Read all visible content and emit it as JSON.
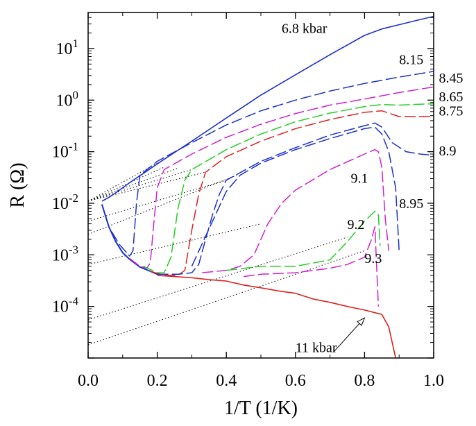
{
  "chart_data": {
    "type": "line",
    "xlabel": "1/T (1/K)",
    "ylabel": "R (Ω)",
    "xlim": [
      0.0,
      1.0
    ],
    "ylim": [
      1e-05,
      50
    ],
    "yscale": "log",
    "grid": false,
    "legend": "none",
    "x_ticks": [
      0.0,
      0.2,
      0.4,
      0.6,
      0.8,
      1.0
    ],
    "x_tick_labels": [
      "0.0",
      "0.2",
      "0.4",
      "0.6",
      "0.8",
      "1.0"
    ],
    "y_ticks": [
      {
        "value": 10,
        "base": "10",
        "exp": "1"
      },
      {
        "value": 1,
        "base": "10",
        "exp": "0"
      },
      {
        "value": 0.1,
        "base": "10",
        "exp": "-1"
      },
      {
        "value": 0.01,
        "base": "10",
        "exp": "-2"
      },
      {
        "value": 0.001,
        "base": "10",
        "exp": "-3"
      },
      {
        "value": 0.0001,
        "base": "10",
        "exp": "-4"
      }
    ],
    "series": [
      {
        "label": "6.8 kbar",
        "color": "#1a2fd0",
        "dash": "solid",
        "x": [
          0.04,
          0.06,
          0.08,
          0.1,
          0.12,
          0.14,
          0.16,
          0.2,
          0.3,
          0.4,
          0.5,
          0.6,
          0.7,
          0.8,
          0.85,
          0.9,
          0.95,
          1.0
        ],
        "y": [
          0.011,
          0.013,
          0.016,
          0.02,
          0.025,
          0.031,
          0.038,
          0.058,
          0.16,
          0.45,
          1.25,
          3.1,
          7.6,
          18,
          24,
          29,
          35,
          42
        ]
      },
      {
        "label": "8.15",
        "color": "#1a2fd0",
        "dash": "dashed",
        "x": [
          0.04,
          0.06,
          0.09,
          0.12,
          0.13,
          0.14,
          0.15,
          0.2,
          0.3,
          0.4,
          0.5,
          0.6,
          0.7,
          0.8,
          0.9,
          1.0
        ],
        "y": [
          0.0095,
          0.0035,
          0.0016,
          0.00095,
          0.0012,
          0.01,
          0.035,
          0.065,
          0.15,
          0.33,
          0.62,
          1.0,
          1.5,
          2.1,
          2.8,
          3.6
        ]
      },
      {
        "label": "8.45",
        "color": "#d020d0",
        "dash": "dashed",
        "x": [
          0.12,
          0.15,
          0.17,
          0.18,
          0.19,
          0.2,
          0.22,
          0.3,
          0.4,
          0.5,
          0.6,
          0.7,
          0.8,
          0.9,
          1.0
        ],
        "y": [
          0.00085,
          0.0006,
          0.00055,
          0.0007,
          0.004,
          0.02,
          0.045,
          0.09,
          0.19,
          0.34,
          0.55,
          0.8,
          1.05,
          1.4,
          1.8
        ]
      },
      {
        "label": "8.65",
        "color": "#20d020",
        "dash": "dashed",
        "x": [
          0.16,
          0.2,
          0.22,
          0.24,
          0.26,
          0.28,
          0.3,
          0.4,
          0.5,
          0.6,
          0.7,
          0.8,
          0.85,
          0.9,
          1.0
        ],
        "y": [
          0.0006,
          0.00045,
          0.00045,
          0.0009,
          0.008,
          0.028,
          0.045,
          0.11,
          0.22,
          0.38,
          0.56,
          0.75,
          0.82,
          0.8,
          0.85
        ]
      },
      {
        "label": "8.75",
        "color": "#e02020",
        "dash": "dashed",
        "x": [
          0.18,
          0.22,
          0.26,
          0.28,
          0.3,
          0.32,
          0.34,
          0.4,
          0.5,
          0.6,
          0.7,
          0.8,
          0.85,
          0.9,
          1.0
        ],
        "y": [
          0.00048,
          0.0004,
          0.0004,
          0.0005,
          0.003,
          0.015,
          0.04,
          0.08,
          0.16,
          0.28,
          0.42,
          0.58,
          0.62,
          0.48,
          0.48
        ]
      },
      {
        "label": "8.9",
        "color": "#1a2fd0",
        "dash": "dashed",
        "x": [
          0.2,
          0.26,
          0.3,
          0.32,
          0.34,
          0.36,
          0.38,
          0.4,
          0.5,
          0.6,
          0.7,
          0.8,
          0.83,
          0.85,
          0.88,
          0.92,
          0.96,
          1.0
        ],
        "y": [
          0.00042,
          0.00042,
          0.00045,
          0.00065,
          0.002,
          0.006,
          0.015,
          0.028,
          0.065,
          0.12,
          0.21,
          0.32,
          0.36,
          0.3,
          0.15,
          0.1,
          0.09,
          0.085
        ]
      },
      {
        "label": "8.95",
        "color": "#1a2fd0",
        "dash": "dashed",
        "x": [
          0.3,
          0.36,
          0.4,
          0.44,
          0.5,
          0.6,
          0.7,
          0.8,
          0.83,
          0.85,
          0.87,
          0.89,
          0.9
        ],
        "y": [
          0.0006,
          0.0045,
          0.017,
          0.035,
          0.06,
          0.11,
          0.18,
          0.28,
          0.3,
          0.22,
          0.1,
          0.02,
          0.0012
        ]
      },
      {
        "label": "9.1",
        "color": "#d020d0",
        "dash": "dashed",
        "x": [
          0.33,
          0.4,
          0.44,
          0.48,
          0.52,
          0.56,
          0.6,
          0.7,
          0.8,
          0.83,
          0.84,
          0.85,
          0.86,
          0.87
        ],
        "y": [
          0.00045,
          0.0005,
          0.0006,
          0.001,
          0.004,
          0.01,
          0.018,
          0.045,
          0.09,
          0.11,
          0.1,
          0.05,
          0.005,
          0.0012
        ]
      },
      {
        "label": "9.2",
        "color": "#20d020",
        "dash": "dashed",
        "x": [
          0.4,
          0.5,
          0.6,
          0.7,
          0.75,
          0.8,
          0.83,
          0.84,
          0.845
        ],
        "y": [
          0.0005,
          0.0006,
          0.0006,
          0.0008,
          0.0018,
          0.0045,
          0.007,
          0.006,
          0.0015
        ]
      },
      {
        "label": "9.3",
        "color": "#d020d0",
        "dash": "dashed",
        "x": [
          0.45,
          0.5,
          0.6,
          0.7,
          0.75,
          0.8,
          0.82,
          0.83,
          0.84
        ],
        "y": [
          0.00038,
          0.00042,
          0.00045,
          0.00055,
          0.00065,
          0.0009,
          0.002,
          0.0035,
          0.0001
        ]
      },
      {
        "label": "11 kbar",
        "color": "#e02020",
        "dash": "solid",
        "x": [
          0.2,
          0.25,
          0.3,
          0.35,
          0.4,
          0.45,
          0.5,
          0.55,
          0.6,
          0.65,
          0.7,
          0.75,
          0.8,
          0.85,
          0.87,
          0.88,
          0.9
        ],
        "y": [
          0.0004,
          0.00038,
          0.00036,
          0.00033,
          0.00031,
          0.00026,
          0.00023,
          0.0002,
          0.00018,
          0.00014,
          0.00012,
          0.0001,
          8.5e-05,
          7e-05,
          4e-05,
          2e-05,
          5e-06
        ]
      }
    ],
    "shared_low_temperature_segment": {
      "x": [
        0.04,
        0.06,
        0.08,
        0.1,
        0.12,
        0.15,
        0.18,
        0.2
      ],
      "y": [
        0.0095,
        0.0035,
        0.0018,
        0.0011,
        0.00082,
        0.00058,
        0.00048,
        0.00042
      ]
    },
    "extrapolation_lines": {
      "color": "#000000",
      "dash": "dotted",
      "segments": [
        {
          "x": [
            0.0,
            0.2
          ],
          "y": [
            0.011,
            0.06
          ]
        },
        {
          "x": [
            0.0,
            0.22
          ],
          "y": [
            0.011,
            0.05
          ]
        },
        {
          "x": [
            0.0,
            0.26
          ],
          "y": [
            0.011,
            0.048
          ]
        },
        {
          "x": [
            0.0,
            0.3
          ],
          "y": [
            0.011,
            0.045
          ]
        },
        {
          "x": [
            0.0,
            0.34
          ],
          "y": [
            0.011,
            0.04
          ]
        },
        {
          "x": [
            0.0,
            0.4
          ],
          "y": [
            0.0045,
            0.028
          ]
        },
        {
          "x": [
            0.0,
            0.43
          ],
          "y": [
            0.0025,
            0.035
          ]
        },
        {
          "x": [
            0.0,
            0.5
          ],
          "y": [
            0.00065,
            0.004
          ]
        },
        {
          "x": [
            0.0,
            0.75
          ],
          "y": [
            5.5e-05,
            0.0022
          ]
        },
        {
          "x": [
            0.0,
            0.8
          ],
          "y": [
            1.8e-05,
            0.0012
          ]
        }
      ]
    },
    "annotations": [
      {
        "text": "6.8 kbar",
        "x": 0.56,
        "y": 20
      },
      {
        "text": "8.15",
        "x": 0.9,
        "y": 5
      },
      {
        "text": "8.45",
        "x": 1.015,
        "y": 2.2
      },
      {
        "text": "8.65",
        "x": 1.015,
        "y": 0.95
      },
      {
        "text": "8.75",
        "x": 1.015,
        "y": 0.5
      },
      {
        "text": "8.9",
        "x": 1.015,
        "y": 0.085
      },
      {
        "text": "9.1",
        "x": 0.76,
        "y": 0.025
      },
      {
        "text": "8.95",
        "x": 0.9,
        "y": 0.008
      },
      {
        "text": "9.2",
        "x": 0.75,
        "y": 0.0032
      },
      {
        "text": "9.3",
        "x": 0.8,
        "y": 0.0007
      },
      {
        "text": "11 kbar",
        "x": 0.6,
        "y": 1.3e-05
      }
    ],
    "arrow": {
      "from": [
        0.71,
        1.3e-05
      ],
      "to": [
        0.8,
        6e-05
      ]
    }
  }
}
